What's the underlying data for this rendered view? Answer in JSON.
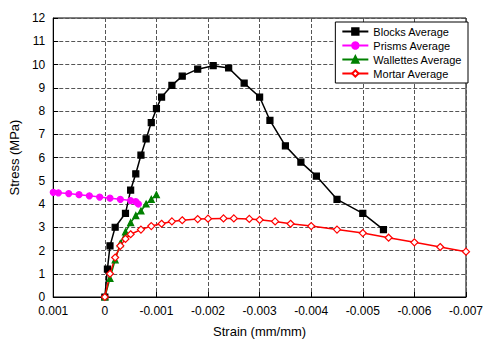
{
  "chart_data": {
    "type": "line",
    "x_label": "Strain (mm/mm)",
    "y_label": "Stress (MPa)",
    "xlim": [
      0.001,
      -0.007
    ],
    "xticks": [
      0.001,
      0,
      -0.001,
      -0.002,
      -0.003,
      -0.004,
      -0.005,
      -0.006,
      -0.007
    ],
    "ylim": [
      0,
      12
    ],
    "yticks": [
      0,
      1,
      2,
      3,
      4,
      5,
      6,
      7,
      8,
      9,
      10,
      11,
      12
    ],
    "grid": true,
    "legend": "upper right",
    "series": [
      {
        "name": "Blocks Average",
        "color": "#000000",
        "marker": "square",
        "x": [
          0,
          -5e-05,
          -0.0001,
          -0.0002,
          -0.0004,
          -0.0005,
          -0.0006,
          -0.0007,
          -0.0008,
          -0.0009,
          -0.001,
          -0.0011,
          -0.0013,
          -0.0015,
          -0.0018,
          -0.0021,
          -0.0024,
          -0.0027,
          -0.003,
          -0.0032,
          -0.0035,
          -0.0038,
          -0.0041,
          -0.0045,
          -0.005,
          -0.0054
        ],
        "values": [
          0,
          1.2,
          2.2,
          3.0,
          3.6,
          4.6,
          5.3,
          6.1,
          6.8,
          7.5,
          8.1,
          8.6,
          9.1,
          9.5,
          9.8,
          9.95,
          9.85,
          9.2,
          8.6,
          7.6,
          6.5,
          5.8,
          5.2,
          4.2,
          3.6,
          2.9
        ]
      },
      {
        "name": "Prisms Average",
        "color": "#ff00ff",
        "marker": "circle",
        "x": [
          0.001,
          0.0009,
          0.0007,
          0.0005,
          0.0003,
          0.0001,
          -0.0001,
          -0.0003,
          -0.0005,
          -0.0006,
          -0.00065
        ],
        "values": [
          4.5,
          4.48,
          4.45,
          4.4,
          4.35,
          4.3,
          4.25,
          4.2,
          4.15,
          4.1,
          4.0
        ]
      },
      {
        "name": "Wallettes Average",
        "color": "#008000",
        "marker": "triangle",
        "x": [
          0,
          -0.0001,
          -0.0002,
          -0.0003,
          -0.0004,
          -0.0005,
          -0.0006,
          -0.0007,
          -0.0008,
          -0.0009,
          -0.001
        ],
        "values": [
          0,
          0.8,
          1.6,
          2.3,
          2.8,
          3.2,
          3.5,
          3.7,
          4.0,
          4.2,
          4.4
        ]
      },
      {
        "name": "Mortar Average",
        "color": "#ff0000",
        "marker": "open_diamond",
        "x": [
          0,
          -0.0001,
          -0.0002,
          -0.0003,
          -0.0004,
          -0.0005,
          -0.0007,
          -0.0009,
          -0.0011,
          -0.0013,
          -0.0015,
          -0.0018,
          -0.002,
          -0.0023,
          -0.0025,
          -0.0028,
          -0.003,
          -0.0033,
          -0.0036,
          -0.004,
          -0.0045,
          -0.005,
          -0.0055,
          -0.006,
          -0.0065,
          -0.007
        ],
        "values": [
          0,
          1.0,
          1.7,
          2.2,
          2.5,
          2.7,
          2.9,
          3.05,
          3.15,
          3.25,
          3.3,
          3.35,
          3.37,
          3.38,
          3.38,
          3.36,
          3.32,
          3.25,
          3.15,
          3.05,
          2.9,
          2.75,
          2.55,
          2.35,
          2.15,
          1.95
        ]
      }
    ]
  }
}
